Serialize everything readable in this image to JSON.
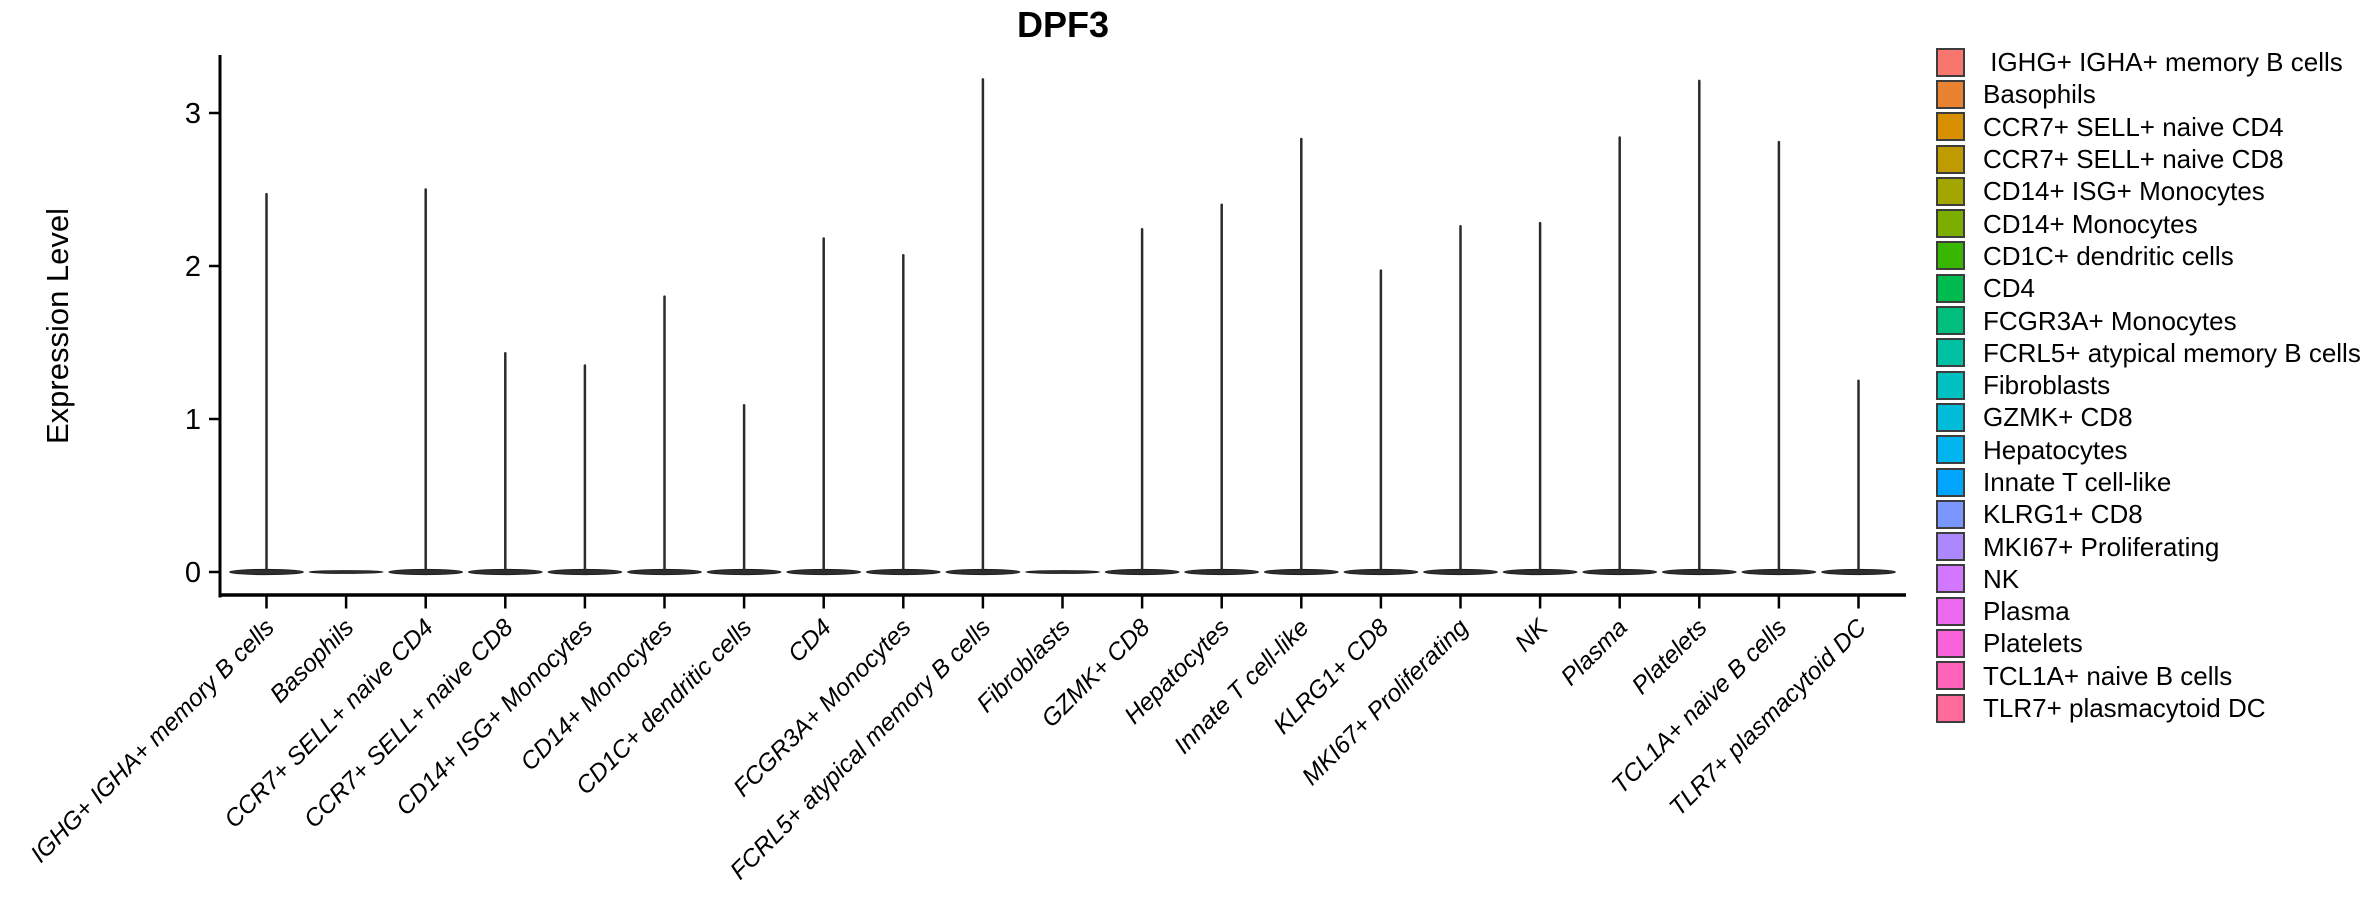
{
  "title": "DPF3",
  "y_axis_label": "Expression Level",
  "colors": {
    "background": "#ffffff",
    "axis": "#000000",
    "violin_fill": "#2e2e2e",
    "violin_line": "#2b2b2b",
    "legend_swatch_border": "#3d3d3d",
    "text": "#000000"
  },
  "chart_data": {
    "type": "violin",
    "title": "DPF3",
    "xlabel": "",
    "ylabel": "Expression Level",
    "y_ticks": [
      "0",
      "1",
      "2",
      "3"
    ],
    "ylim": [
      -0.15,
      3.37
    ],
    "grid": false,
    "legend_position": "right",
    "x_tick_angle": 45,
    "x_tick_style": "italic",
    "cell_types": [
      {
        "name": "IGHG+ IGHA+ memory B cells",
        "legend_label": " IGHG+ IGHA+ memory B cells",
        "color": "#F8766D",
        "max_expression": 2.47
      },
      {
        "name": "Basophils",
        "legend_label": "Basophils",
        "color": "#EA8331",
        "max_expression": 0
      },
      {
        "name": "CCR7+ SELL+ naive CD4",
        "legend_label": "CCR7+ SELL+ naive CD4",
        "color": "#D89000",
        "max_expression": 2.5
      },
      {
        "name": "CCR7+ SELL+ naive CD8",
        "legend_label": "CCR7+ SELL+ naive CD8",
        "color": "#C09B00",
        "max_expression": 1.43
      },
      {
        "name": "CD14+ ISG+ Monocytes",
        "legend_label": "CD14+ ISG+ Monocytes",
        "color": "#A3A500",
        "max_expression": 1.35
      },
      {
        "name": "CD14+ Monocytes",
        "legend_label": "CD14+ Monocytes",
        "color": "#7CAE00",
        "max_expression": 1.8
      },
      {
        "name": "CD1C+ dendritic cells",
        "legend_label": "CD1C+ dendritic cells",
        "color": "#39B600",
        "max_expression": 1.09
      },
      {
        "name": "CD4",
        "legend_label": "CD4",
        "color": "#00BB4E",
        "max_expression": 2.18
      },
      {
        "name": "FCGR3A+ Monocytes",
        "legend_label": "FCGR3A+ Monocytes",
        "color": "#00BF7D",
        "max_expression": 2.07
      },
      {
        "name": "FCRL5+ atypical memory B cells",
        "legend_label": "FCRL5+ atypical memory B cells",
        "color": "#00C1A3",
        "max_expression": 3.22
      },
      {
        "name": "Fibroblasts",
        "legend_label": "Fibroblasts",
        "color": "#00C0C2",
        "max_expression": 0
      },
      {
        "name": "GZMK+ CD8",
        "legend_label": "GZMK+ CD8",
        "color": "#00BCD8",
        "max_expression": 2.24
      },
      {
        "name": "Hepatocytes",
        "legend_label": "Hepatocytes",
        "color": "#00B4EF",
        "max_expression": 2.4
      },
      {
        "name": "Innate T cell-like",
        "legend_label": "Innate T cell-like",
        "color": "#00A5FF",
        "max_expression": 2.83
      },
      {
        "name": "KLRG1+ CD8",
        "legend_label": "KLRG1+ CD8",
        "color": "#7997FF",
        "max_expression": 1.97
      },
      {
        "name": "MKI67+ Proliferating",
        "legend_label": "MKI67+ Proliferating",
        "color": "#AC88FF",
        "max_expression": 2.26
      },
      {
        "name": "NK",
        "legend_label": "NK",
        "color": "#D277FF",
        "max_expression": 2.28
      },
      {
        "name": "Plasma",
        "legend_label": "Plasma",
        "color": "#EC69EF",
        "max_expression": 2.84
      },
      {
        "name": "Platelets",
        "legend_label": "Platelets",
        "color": "#FA62DB",
        "max_expression": 3.21
      },
      {
        "name": "TCL1A+ naive B cells",
        "legend_label": "TCL1A+ naive B cells",
        "color": "#FF62BB",
        "max_expression": 2.81
      },
      {
        "name": "TLR7+ plasmacytoid DC",
        "legend_label": "TLR7+ plasmacytoid DC",
        "color": "#FF6C9A",
        "max_expression": 1.25
      }
    ]
  }
}
